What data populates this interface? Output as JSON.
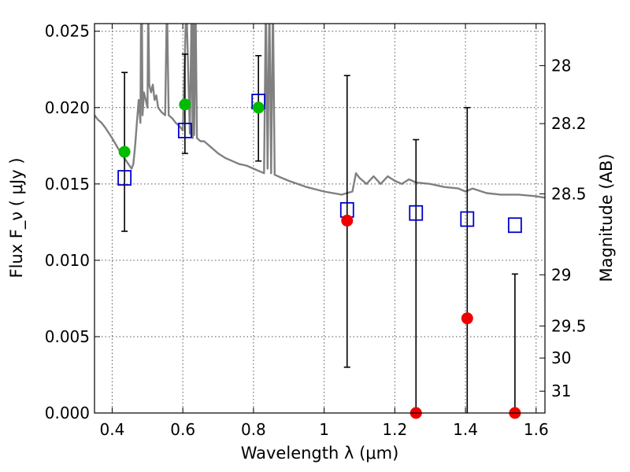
{
  "chart_data": {
    "type": "scatter",
    "xlabel": "Wavelength  λ (μm)",
    "ylabel": "Flux  F_ν  ( μJy )",
    "ylabel_right": "Magnitude (AB)",
    "xlim": [
      0.35,
      1.625
    ],
    "ylim": [
      0.0,
      0.0255
    ],
    "grid": true,
    "x_ticks": [
      0.4,
      0.6,
      0.8,
      1.0,
      1.2,
      1.4,
      1.6
    ],
    "x_tick_labels": [
      "0.4",
      "0.6",
      "0.8",
      "1",
      "1.2",
      "1.4",
      "1.6"
    ],
    "y_ticks": [
      0.0,
      0.005,
      0.01,
      0.015,
      0.02,
      0.025
    ],
    "y_tick_labels": [
      "0.000",
      "0.005",
      "0.010",
      "0.015",
      "0.020",
      "0.025"
    ],
    "right_ticks": [
      {
        "flux": 0.02275,
        "label": "28"
      },
      {
        "flux": 0.01895,
        "label": "28.2"
      },
      {
        "flux": 0.01435,
        "label": "28.5"
      },
      {
        "flux": 0.00905,
        "label": "29"
      },
      {
        "flux": 0.0057,
        "label": "29.5"
      },
      {
        "flux": 0.0036,
        "label": "30"
      },
      {
        "flux": 0.00143,
        "label": "31"
      }
    ],
    "observed_detections": {
      "color": "#00bb00",
      "points": [
        {
          "x": 0.435,
          "y": 0.0171,
          "err_low": 0.0119,
          "err_high": 0.0223
        },
        {
          "x": 0.606,
          "y": 0.0202,
          "err_low": 0.017,
          "err_high": 0.0235
        },
        {
          "x": 0.814,
          "y": 0.02,
          "err_low": 0.0165,
          "err_high": 0.0234
        }
      ]
    },
    "observed_nondetections": {
      "color": "#ee0000",
      "points": [
        {
          "x": 1.065,
          "y": 0.0126,
          "err_low": 0.003,
          "err_high": 0.0221
        },
        {
          "x": 1.26,
          "y": 0.0,
          "err_low": 0.0,
          "err_high": 0.0179
        },
        {
          "x": 1.405,
          "y": 0.0062,
          "err_low": 0.0,
          "err_high": 0.02
        },
        {
          "x": 1.54,
          "y": 0.0,
          "err_low": 0.0,
          "err_high": 0.0091
        }
      ]
    },
    "model_photometry": {
      "color": "#0000cc",
      "points": [
        {
          "x": 0.435,
          "y": 0.0154
        },
        {
          "x": 0.606,
          "y": 0.0185
        },
        {
          "x": 0.814,
          "y": 0.0204
        },
        {
          "x": 1.065,
          "y": 0.0133
        },
        {
          "x": 1.26,
          "y": 0.0131
        },
        {
          "x": 1.405,
          "y": 0.0127
        },
        {
          "x": 1.54,
          "y": 0.0123
        }
      ]
    },
    "model_spectrum": {
      "color": "#808080",
      "x": [
        0.35,
        0.36,
        0.37,
        0.38,
        0.4,
        0.42,
        0.44,
        0.455,
        0.46,
        0.465,
        0.47,
        0.475,
        0.48,
        0.482,
        0.484,
        0.486,
        0.49,
        0.495,
        0.5,
        0.502,
        0.505,
        0.51,
        0.515,
        0.52,
        0.525,
        0.53,
        0.54,
        0.55,
        0.555,
        0.56,
        0.57,
        0.58,
        0.59,
        0.6,
        0.61,
        0.62,
        0.625,
        0.628,
        0.63,
        0.632,
        0.636,
        0.64,
        0.65,
        0.66,
        0.67,
        0.68,
        0.7,
        0.72,
        0.74,
        0.76,
        0.78,
        0.8,
        0.82,
        0.83,
        0.835,
        0.84,
        0.845,
        0.85,
        0.855,
        0.86,
        0.88,
        0.9,
        0.95,
        1.0,
        1.05,
        1.08,
        1.09,
        1.1,
        1.12,
        1.14,
        1.16,
        1.18,
        1.2,
        1.22,
        1.24,
        1.26,
        1.3,
        1.34,
        1.38,
        1.4,
        1.42,
        1.46,
        1.5,
        1.55,
        1.6,
        1.625
      ],
      "y": [
        0.0195,
        0.0192,
        0.019,
        0.0187,
        0.018,
        0.0172,
        0.0165,
        0.016,
        0.0163,
        0.0175,
        0.019,
        0.0205,
        0.019,
        0.027,
        0.027,
        0.0195,
        0.021,
        0.0205,
        0.02,
        0.027,
        0.0215,
        0.021,
        0.0215,
        0.0205,
        0.0208,
        0.02,
        0.0197,
        0.0195,
        0.027,
        0.0195,
        0.0193,
        0.019,
        0.0188,
        0.0185,
        0.027,
        0.0183,
        0.027,
        0.018,
        0.027,
        0.0182,
        0.027,
        0.018,
        0.0178,
        0.0178,
        0.0176,
        0.0174,
        0.017,
        0.0167,
        0.0165,
        0.0163,
        0.0162,
        0.016,
        0.0158,
        0.0157,
        0.027,
        0.016,
        0.027,
        0.0157,
        0.027,
        0.0156,
        0.0154,
        0.0152,
        0.0148,
        0.0145,
        0.0143,
        0.0145,
        0.0157,
        0.0154,
        0.015,
        0.0155,
        0.015,
        0.0155,
        0.0152,
        0.015,
        0.0153,
        0.0151,
        0.015,
        0.0148,
        0.0147,
        0.0145,
        0.0147,
        0.0144,
        0.0143,
        0.0143,
        0.0142,
        0.0141
      ]
    }
  }
}
